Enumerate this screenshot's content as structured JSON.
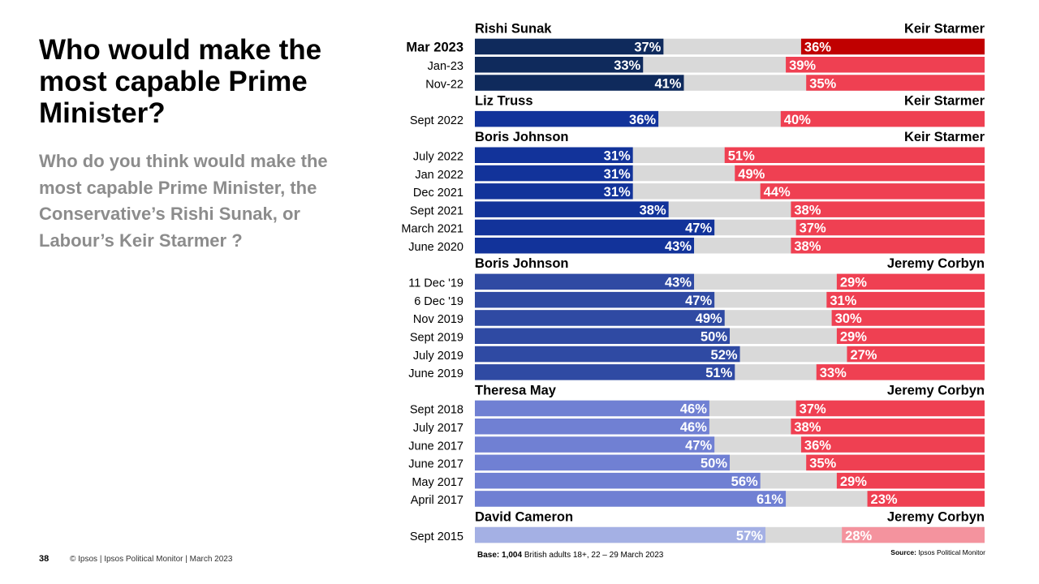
{
  "title": "Who would make the most capable Prime Minister?",
  "subtitle": "Who do you think would make the most capable Prime Minister, the Conservative’s Rishi Sunak, or Labour’s Keir Starmer ?",
  "footer": {
    "page_number": "38",
    "copyright": "© Ipsos | Ipsos Political Monitor | March 2023",
    "base_label": "Base:",
    "base_count": "1,004",
    "base_text": " British adults 18+,  22 – 29 March 2023",
    "source_label": "Source:",
    "source_text": " Ipsos  Political Monitor"
  },
  "colors": {
    "background_bar": "#d9d9d9",
    "right_default": "#ef4052",
    "right_highlight": "#c00000",
    "right_light": "#f4939e",
    "left_dark": "#0f2a5c",
    "left_navy": "#12339a",
    "left_blue": "#2f4aa3",
    "left_periwinkle": "#7080d3",
    "left_light": "#a4b0e4"
  },
  "chart_data": {
    "type": "bar",
    "orientation": "horizontal-diverging",
    "unit": "%",
    "xlim": [
      0,
      100
    ],
    "groups": [
      {
        "left_leader": "Rishi Sunak",
        "right_leader": "Keir Starmer",
        "left_color": "#0f2a5c",
        "right_color": "#ef4052",
        "rows": [
          {
            "label": "Mar 2023",
            "left": 37,
            "right": 36,
            "bold": true,
            "right_color": "#c00000"
          },
          {
            "label": "Jan-23",
            "left": 33,
            "right": 39
          },
          {
            "label": "Nov-22",
            "left": 41,
            "right": 35
          }
        ]
      },
      {
        "left_leader": "Liz Truss",
        "right_leader": "Keir Starmer",
        "left_color": "#12339a",
        "right_color": "#ef4052",
        "rows": [
          {
            "label": "Sept 2022",
            "left": 36,
            "right": 40
          }
        ]
      },
      {
        "left_leader": "Boris Johnson",
        "right_leader": "Keir Starmer",
        "left_color": "#12339a",
        "right_color": "#ef4052",
        "rows": [
          {
            "label": "July 2022",
            "left": 31,
            "right": 51
          },
          {
            "label": "Jan 2022",
            "left": 31,
            "right": 49
          },
          {
            "label": "Dec 2021",
            "left": 31,
            "right": 44
          },
          {
            "label": "Sept 2021",
            "left": 38,
            "right": 38
          },
          {
            "label": "March 2021",
            "left": 47,
            "right": 37
          },
          {
            "label": "June 2020",
            "left": 43,
            "right": 38
          }
        ]
      },
      {
        "left_leader": "Boris Johnson",
        "right_leader": "Jeremy Corbyn",
        "left_color": "#2f4aa3",
        "right_color": "#ef4052",
        "rows": [
          {
            "label": "11 Dec '19",
            "left": 43,
            "right": 29
          },
          {
            "label": "6 Dec '19",
            "left": 47,
            "right": 31
          },
          {
            "label": "Nov 2019",
            "left": 49,
            "right": 30
          },
          {
            "label": "Sept 2019",
            "left": 50,
            "right": 29
          },
          {
            "label": "July 2019",
            "left": 52,
            "right": 27
          },
          {
            "label": "June 2019",
            "left": 51,
            "right": 33
          }
        ]
      },
      {
        "left_leader": "Theresa May",
        "right_leader": "Jeremy Corbyn",
        "left_color": "#7080d3",
        "right_color": "#ef4052",
        "rows": [
          {
            "label": "Sept 2018",
            "left": 46,
            "right": 37
          },
          {
            "label": "July 2017",
            "left": 46,
            "right": 38
          },
          {
            "label": "June 2017",
            "left": 47,
            "right": 36
          },
          {
            "label": "June 2017",
            "left": 50,
            "right": 35
          },
          {
            "label": "May 2017",
            "left": 56,
            "right": 29
          },
          {
            "label": "April 2017",
            "left": 61,
            "right": 23
          }
        ]
      },
      {
        "left_leader": "David Cameron",
        "right_leader": "Jeremy Corbyn",
        "left_color": "#a4b0e4",
        "right_color": "#f4939e",
        "rows": [
          {
            "label": "Sept 2015",
            "left": 57,
            "right": 28
          }
        ]
      }
    ]
  }
}
